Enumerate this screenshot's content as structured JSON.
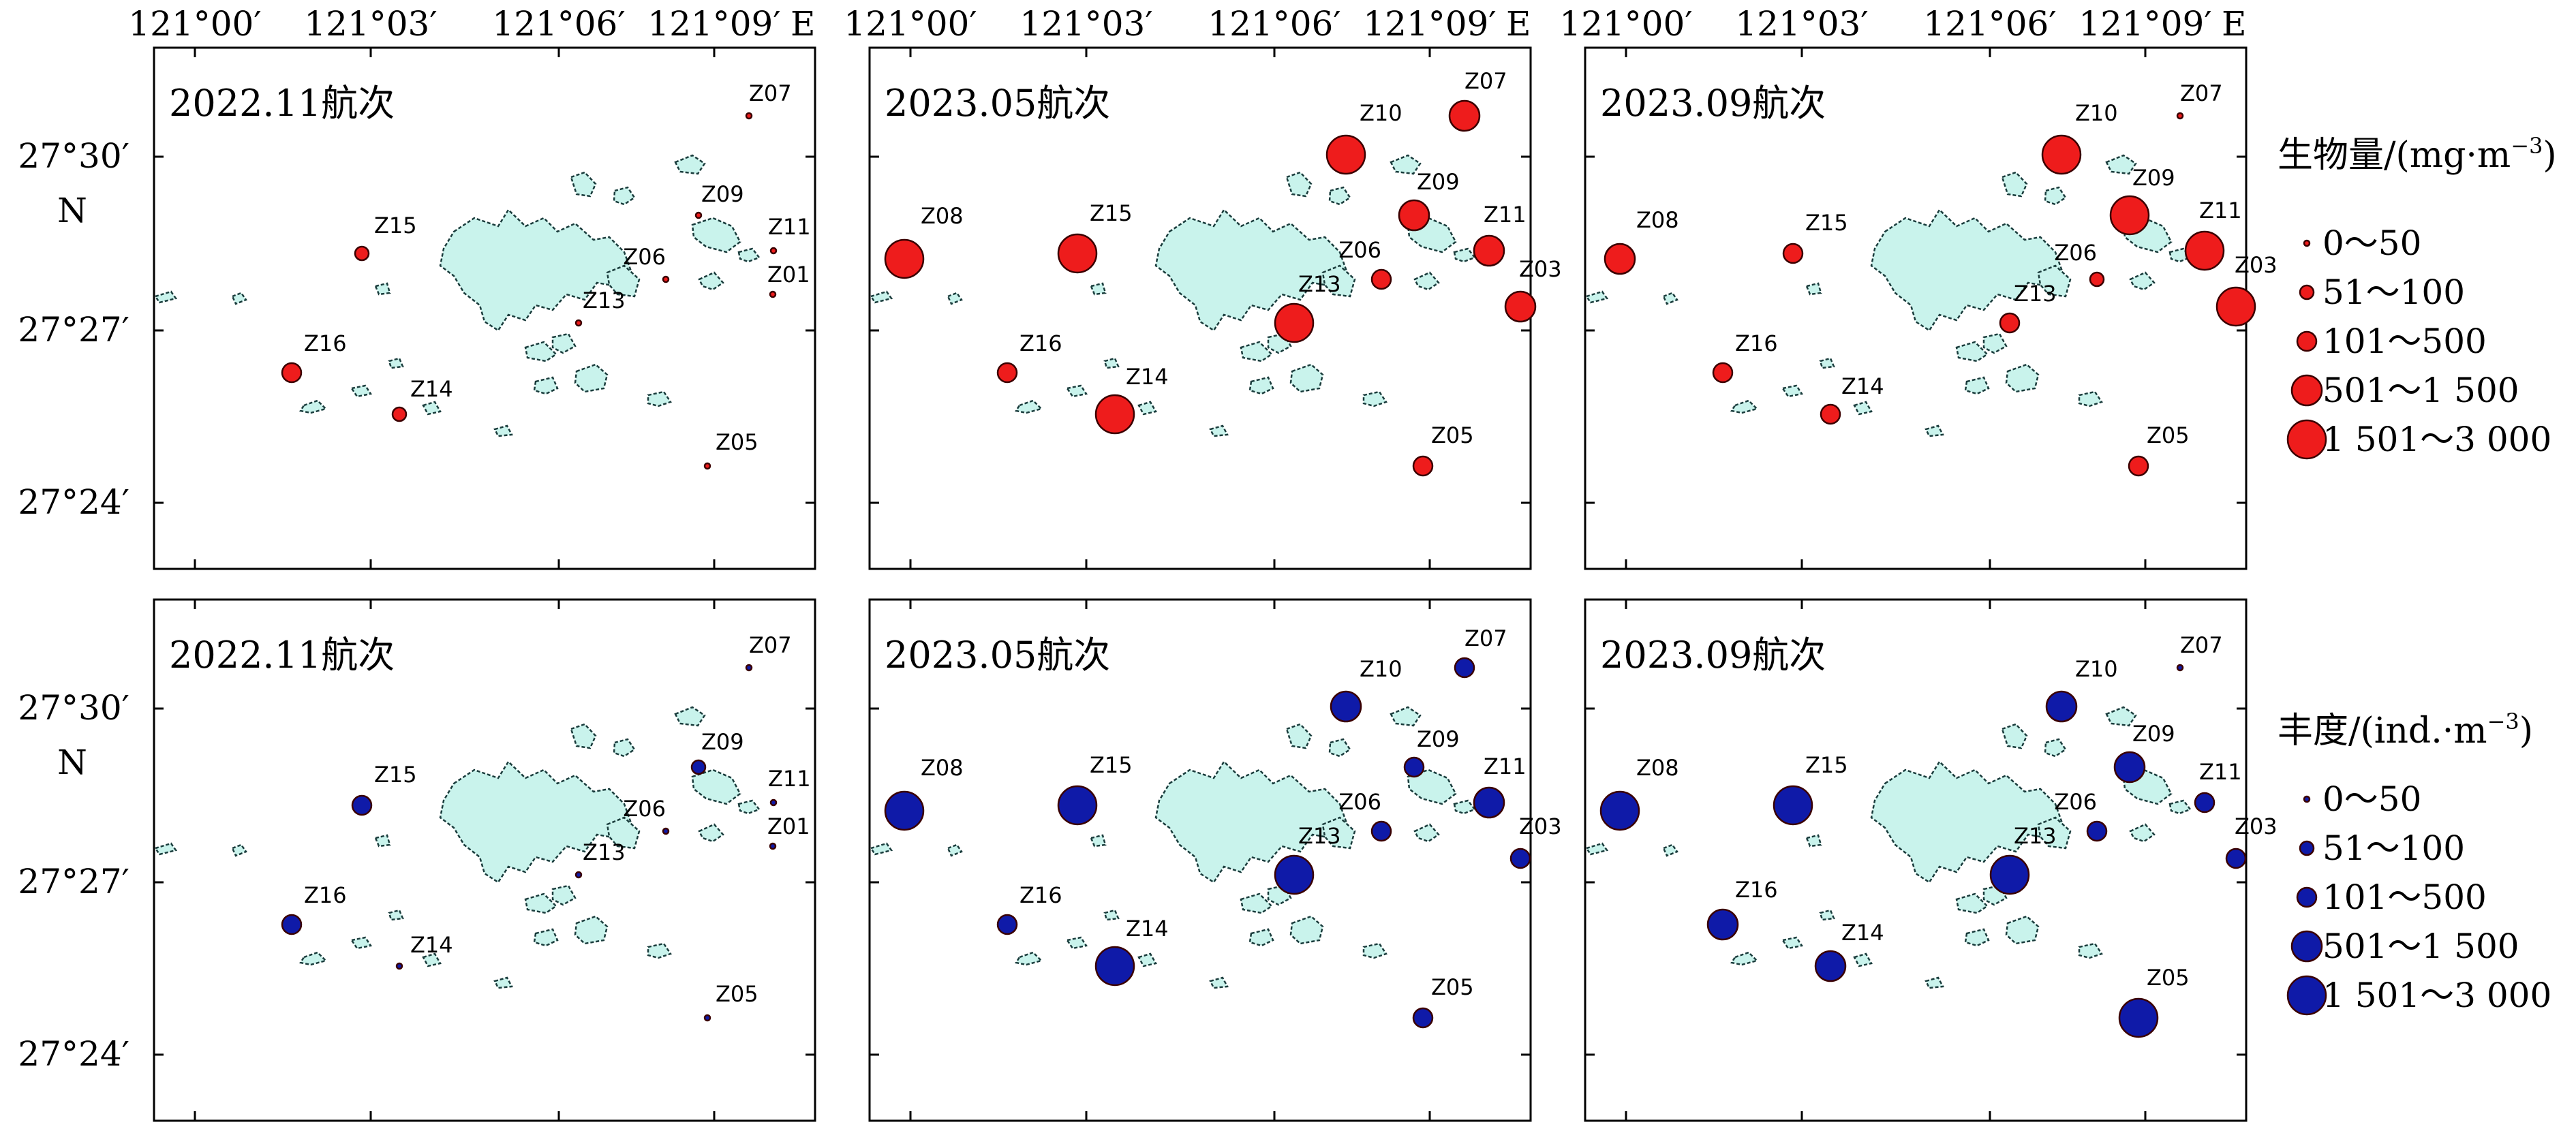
{
  "x_ticks": [
    "121°00′",
    "121°03′",
    "121°06′",
    "121°09′"
  ],
  "x_unit": "E",
  "y_ticks": [
    "27°30′",
    "27°27′",
    "27°24′"
  ],
  "y_unit": "N",
  "rows": [
    {
      "metric": "biomass",
      "color": "#ee1c1c",
      "legend_title": "生物量/(mg·m",
      "legend_sup": "−3",
      "legend_close": ")"
    },
    {
      "metric": "abundance",
      "color": "#0f1aa8",
      "legend_title": "丰度/(ind.·m",
      "legend_sup": "−3",
      "legend_close": ")"
    }
  ],
  "legend_classes": [
    "0～50",
    "51～100",
    "101～500",
    "501～1 500",
    "1 501～3 000"
  ],
  "panels": [
    {
      "title": "2022.11航次",
      "biomass_class": {
        "Z07": 0,
        "Z09": 0,
        "Z11": 0,
        "Z01": 0,
        "Z15": 1,
        "Z06": 0,
        "Z13": 0,
        "Z16": 2,
        "Z14": 1,
        "Z05": 0
      },
      "abundance_class": {
        "Z07": 0,
        "Z09": 1,
        "Z11": 0,
        "Z01": 0,
        "Z15": 2,
        "Z06": 0,
        "Z13": 0,
        "Z16": 2,
        "Z14": 0,
        "Z05": 0
      }
    },
    {
      "title": "2023.05航次",
      "biomass_class": {
        "Z07": 3,
        "Z10": 4,
        "Z09": 3,
        "Z11": 3,
        "Z08": 4,
        "Z15": 4,
        "Z06": 2,
        "Z03": 3,
        "Z13": 4,
        "Z16": 2,
        "Z14": 4,
        "Z05": 2
      },
      "abundance_class": {
        "Z07": 2,
        "Z10": 3,
        "Z09": 2,
        "Z11": 3,
        "Z08": 4,
        "Z15": 4,
        "Z06": 2,
        "Z03": 2,
        "Z13": 4,
        "Z16": 2,
        "Z14": 4,
        "Z05": 2
      }
    },
    {
      "title": "2023.09航次",
      "biomass_class": {
        "Z07": 0,
        "Z10": 4,
        "Z09": 4,
        "Z11": 4,
        "Z08": 3,
        "Z15": 2,
        "Z06": 1,
        "Z03": 4,
        "Z13": 2,
        "Z16": 2,
        "Z14": 2,
        "Z05": 2
      },
      "abundance_class": {
        "Z07": 0,
        "Z10": 3,
        "Z09": 3,
        "Z11": 2,
        "Z08": 4,
        "Z15": 4,
        "Z06": 2,
        "Z03": 2,
        "Z13": 4,
        "Z16": 3,
        "Z14": 3,
        "Z05": 4
      }
    }
  ]
}
